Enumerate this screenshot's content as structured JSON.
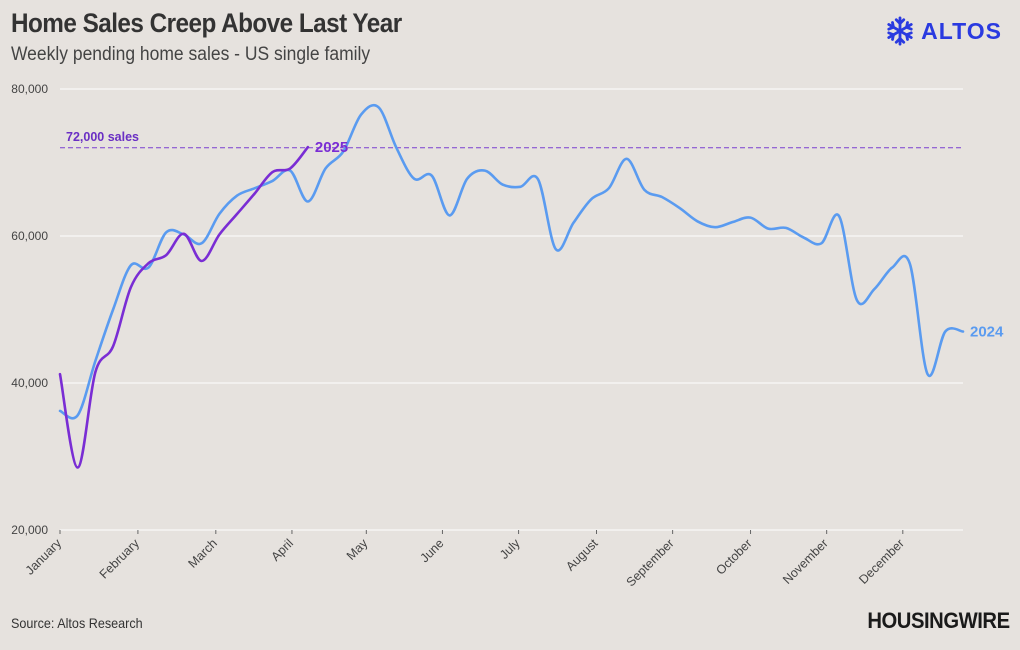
{
  "header": {
    "title": "Home Sales Creep Above Last Year",
    "subtitle": "Weekly pending home sales - US single family"
  },
  "branding": {
    "altos_logo": "ALTOS",
    "housingwire_logo": "HOUSINGWIRE",
    "altos_color": "#2a3ae0"
  },
  "footer": {
    "source": "Source: Altos Research"
  },
  "chart_data": {
    "type": "line",
    "title": "Home Sales Creep Above Last Year",
    "subtitle": "Weekly pending home sales - US single family",
    "xlabel": "",
    "ylabel": "",
    "x_unit": "week of year (1-52)",
    "xlim": [
      1,
      52
    ],
    "ylim": [
      20000,
      80000
    ],
    "y_ticks": [
      20000,
      40000,
      60000,
      80000
    ],
    "y_tick_labels": [
      "20,000",
      "40,000",
      "60,000",
      "80,000"
    ],
    "month_ticks": [
      {
        "label": "January",
        "x": 1
      },
      {
        "label": "February",
        "x": 5.4
      },
      {
        "label": "March",
        "x": 9.8
      },
      {
        "label": "April",
        "x": 14.1
      },
      {
        "label": "May",
        "x": 18.3
      },
      {
        "label": "June",
        "x": 22.6
      },
      {
        "label": "July",
        "x": 26.9
      },
      {
        "label": "August",
        "x": 31.3
      },
      {
        "label": "September",
        "x": 35.6
      },
      {
        "label": "October",
        "x": 40
      },
      {
        "label": "November",
        "x": 44.3
      },
      {
        "label": "December",
        "x": 48.6
      }
    ],
    "grid": true,
    "reference_line": {
      "value": 72000,
      "label": "72,000 sales",
      "color": "#7a3fd0"
    },
    "series": [
      {
        "name": "2024",
        "label": "2024",
        "color": "#5a9bf0",
        "x": [
          1,
          2,
          3,
          4,
          5,
          6,
          7,
          8,
          9,
          10,
          11,
          12,
          13,
          14,
          15,
          16,
          17,
          18,
          19,
          20,
          21,
          22,
          23,
          24,
          25,
          26,
          27,
          28,
          29,
          30,
          31,
          32,
          33,
          34,
          35,
          36,
          37,
          38,
          39,
          40,
          41,
          42,
          43,
          44,
          45,
          46,
          47,
          48,
          49,
          50,
          51,
          52
        ],
        "values": [
          36200,
          35600,
          43000,
          50000,
          56000,
          55700,
          60500,
          60200,
          59000,
          63000,
          65500,
          66500,
          67500,
          68900,
          64700,
          69200,
          71500,
          76500,
          77500,
          72000,
          67800,
          68200,
          62800,
          67800,
          68900,
          67000,
          66700,
          67700,
          58200,
          61800,
          65000,
          66500,
          70500,
          66300,
          65300,
          63800,
          62000,
          61200,
          61900,
          62500,
          61000,
          61100,
          59800,
          59000,
          62700,
          51300,
          52800,
          55700,
          56200,
          41200,
          47000,
          47000
        ]
      },
      {
        "name": "2025",
        "label": "2025",
        "color": "#7a2dd4",
        "x": [
          1,
          2,
          3,
          4,
          5,
          6,
          7,
          8,
          9,
          10,
          11,
          12,
          13,
          14,
          15
        ],
        "values": [
          41200,
          28500,
          41500,
          45000,
          53000,
          56300,
          57400,
          60300,
          56600,
          60200,
          63000,
          65800,
          68700,
          69200,
          72100
        ]
      }
    ]
  }
}
